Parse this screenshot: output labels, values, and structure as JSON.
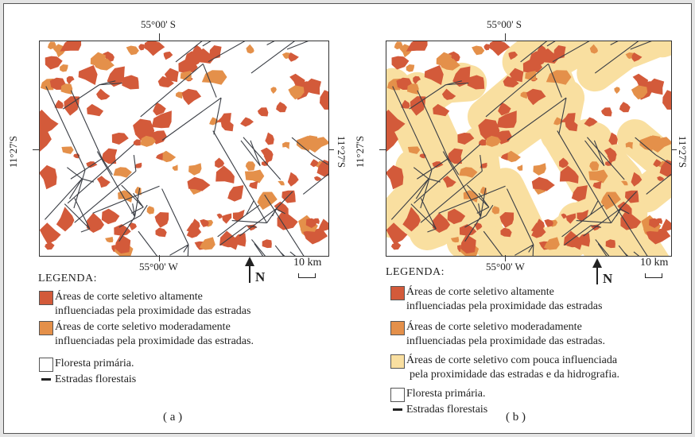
{
  "colors": {
    "high": "#d35a3a",
    "moderate": "#e4904a",
    "low": "#f9dfa0",
    "forest": "#ffffff",
    "road": "#3a3e45"
  },
  "panels": [
    {
      "top_label": "55°00' S",
      "bottom_label": "55°00' W",
      "left_label": "11°27'S",
      "right_label": "11°27'S",
      "north_label": "N",
      "scale_label": "10 km",
      "legend_title": "LEGENDA:",
      "legend": [
        {
          "lines": [
            "Áreas de corte seletivo altamente",
            "influenciadas pela proximidade das estradas"
          ],
          "icon": "high-swatch"
        },
        {
          "lines": [
            "Áreas de corte seletivo moderadamente",
            "influenciadas pela proximidade das estradas."
          ],
          "icon": "moderate-swatch"
        },
        {
          "lines": [
            "Floresta primária."
          ],
          "icon": "forest-swatch"
        },
        {
          "lines": [
            "Estradas florestais"
          ],
          "icon": "road-line"
        }
      ],
      "caption": "( a )"
    },
    {
      "top_label": "55°00' S",
      "bottom_label": "55°00' W",
      "left_label": "11°27'S",
      "right_label": "11°27'S",
      "north_label": "N",
      "scale_label": "10 km",
      "legend_title": "LEGENDA:",
      "legend": [
        {
          "lines": [
            "Áreas de corte seletivo altamente",
            "influenciadas pela proximidade das estradas"
          ],
          "icon": "high-swatch"
        },
        {
          "lines": [
            "Áreas de corte seletivo moderadamente",
            "influenciadas pela proximidade das estradas."
          ],
          "icon": "moderate-swatch"
        },
        {
          "lines": [
            "Áreas de corte seletivo com pouca influenciada",
            "pela proximidade das estradas e da hidrografia."
          ],
          "icon": "low-swatch"
        },
        {
          "lines": [
            "Floresta primária."
          ],
          "icon": "forest-swatch"
        },
        {
          "lines": [
            "Estradas florestais"
          ],
          "icon": "road-line"
        }
      ],
      "caption": "( b )"
    }
  ]
}
